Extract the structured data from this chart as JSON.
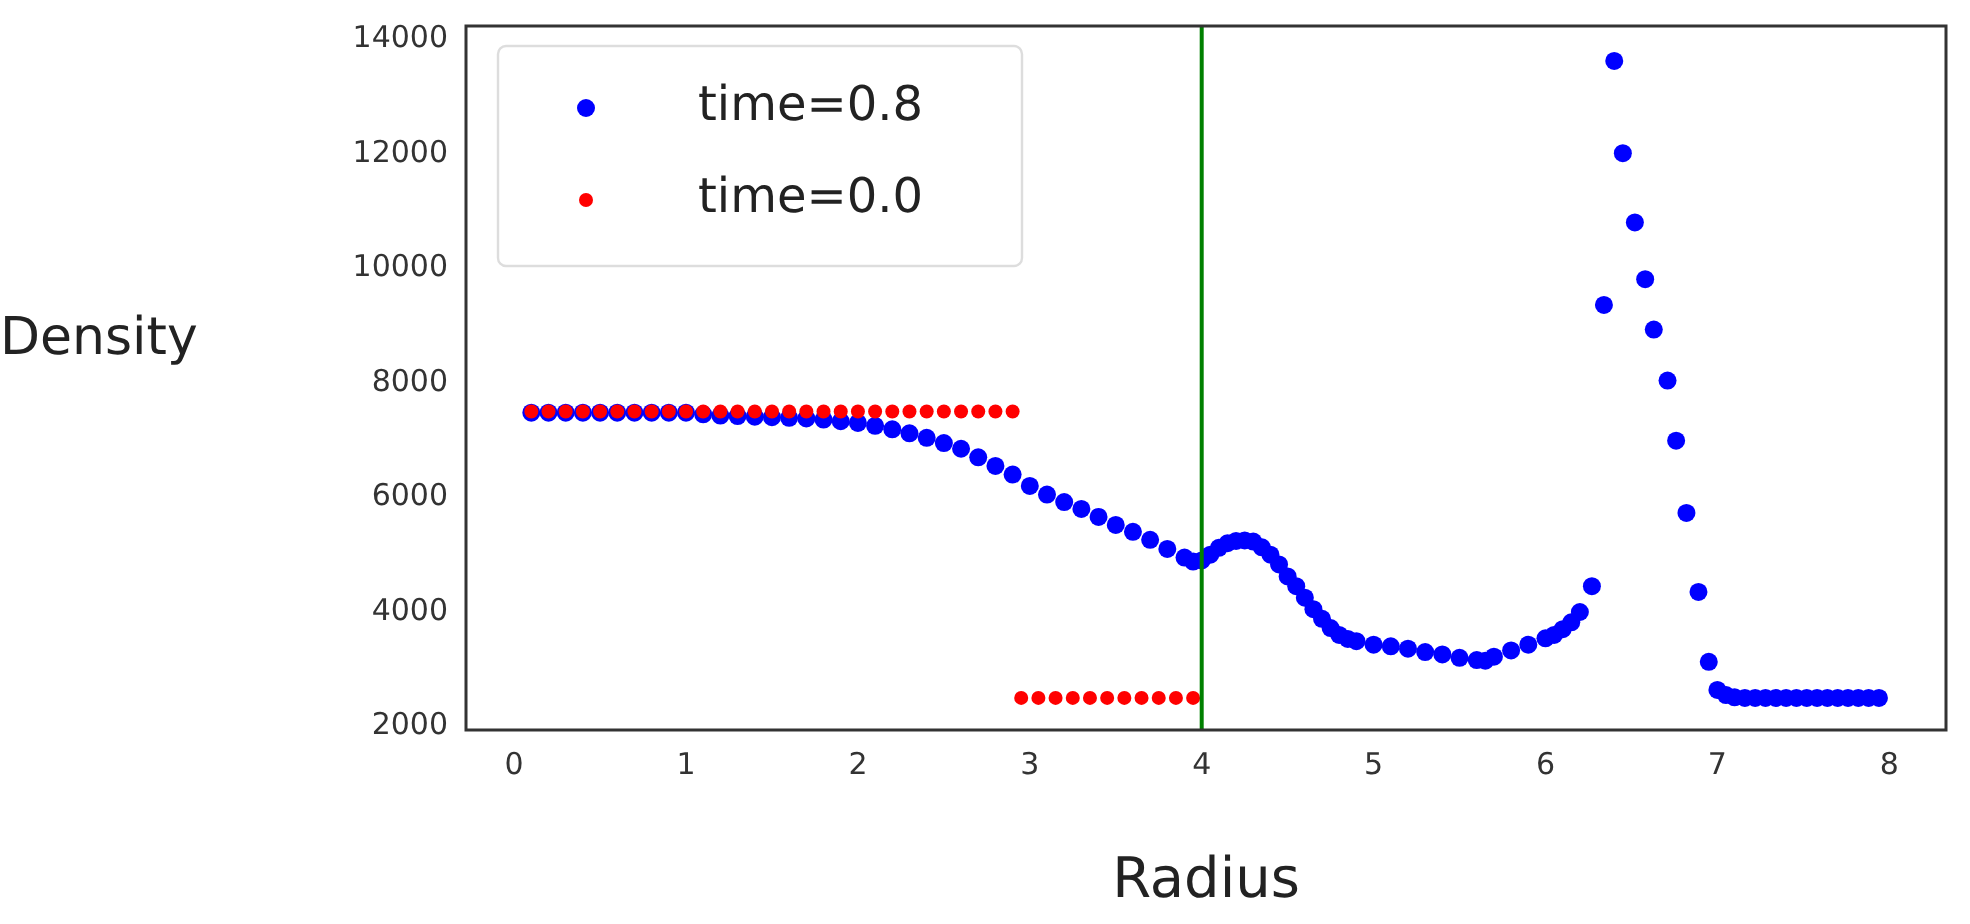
{
  "chart_data": {
    "type": "scatter",
    "xlabel": "Radius",
    "ylabel": "Density",
    "xlim": [
      -0.28,
      8.33
    ],
    "ylim": [
      1940,
      14230
    ],
    "xticks": [
      0,
      1,
      2,
      3,
      4,
      5,
      6,
      7,
      8
    ],
    "yticks": [
      2000,
      4000,
      6000,
      8000,
      10000,
      12000,
      14000
    ],
    "grid": false,
    "legend": "top left",
    "marker": "circle",
    "series": [
      {
        "name": "time=0.8",
        "color": "#0000ff",
        "x": [
          0.1,
          0.2,
          0.3,
          0.4,
          0.5,
          0.6,
          0.7,
          0.8,
          0.9,
          1.0,
          1.1,
          1.2,
          1.3,
          1.4,
          1.5,
          1.6,
          1.7,
          1.8,
          1.9,
          2.0,
          2.1,
          2.2,
          2.3,
          2.4,
          2.5,
          2.6,
          2.7,
          2.8,
          2.9,
          3.0,
          3.1,
          3.2,
          3.3,
          3.4,
          3.5,
          3.6,
          3.7,
          3.8,
          3.9,
          3.95,
          4.0,
          4.05,
          4.1,
          4.15,
          4.2,
          4.25,
          4.3,
          4.35,
          4.4,
          4.45,
          4.5,
          4.55,
          4.6,
          4.65,
          4.7,
          4.75,
          4.8,
          4.85,
          4.9,
          5.0,
          5.1,
          5.2,
          5.3,
          5.4,
          5.5,
          5.6,
          5.65,
          5.7,
          5.8,
          5.9,
          6.0,
          6.05,
          6.1,
          6.15,
          6.2,
          6.27,
          6.34,
          6.4,
          6.45,
          6.52,
          6.58,
          6.63,
          6.71,
          6.76,
          6.82,
          6.89,
          6.95,
          7.0,
          7.05,
          7.1,
          7.16,
          7.22,
          7.28,
          7.34,
          7.4,
          7.46,
          7.52,
          7.58,
          7.64,
          7.7,
          7.76,
          7.82,
          7.88,
          7.94
        ],
        "values": [
          7480,
          7480,
          7480,
          7480,
          7480,
          7480,
          7480,
          7480,
          7480,
          7480,
          7450,
          7430,
          7420,
          7410,
          7400,
          7390,
          7380,
          7360,
          7330,
          7300,
          7250,
          7190,
          7120,
          7040,
          6950,
          6850,
          6700,
          6550,
          6400,
          6200,
          6050,
          5920,
          5800,
          5660,
          5520,
          5400,
          5260,
          5100,
          4950,
          4880,
          4900,
          5000,
          5120,
          5200,
          5240,
          5250,
          5230,
          5130,
          5000,
          4830,
          4620,
          4450,
          4250,
          4050,
          3880,
          3720,
          3600,
          3530,
          3490,
          3430,
          3400,
          3360,
          3300,
          3260,
          3200,
          3160,
          3150,
          3220,
          3330,
          3430,
          3540,
          3600,
          3700,
          3820,
          4000,
          4450,
          9360,
          13620,
          12010,
          10800,
          9810,
          8930,
          8040,
          6990,
          5730,
          4350,
          3130,
          2640,
          2550,
          2510,
          2500,
          2500,
          2500,
          2500,
          2500,
          2500,
          2500,
          2500,
          2500,
          2500,
          2500,
          2500,
          2500,
          2500
        ]
      },
      {
        "name": "time=0.0",
        "color": "#ff0000",
        "x": [
          0.1,
          0.2,
          0.3,
          0.4,
          0.5,
          0.6,
          0.7,
          0.8,
          0.9,
          1.0,
          1.1,
          1.2,
          1.3,
          1.4,
          1.5,
          1.6,
          1.7,
          1.8,
          1.9,
          2.0,
          2.1,
          2.2,
          2.3,
          2.4,
          2.5,
          2.6,
          2.7,
          2.8,
          2.9,
          2.95,
          3.05,
          3.15,
          3.25,
          3.35,
          3.45,
          3.55,
          3.65,
          3.75,
          3.85,
          3.95
        ],
        "values": [
          7500,
          7500,
          7500,
          7500,
          7500,
          7500,
          7500,
          7500,
          7500,
          7500,
          7500,
          7500,
          7500,
          7500,
          7500,
          7500,
          7500,
          7500,
          7500,
          7500,
          7500,
          7500,
          7500,
          7500,
          7500,
          7500,
          7500,
          7500,
          7500,
          2500,
          2500,
          2500,
          2500,
          2500,
          2500,
          2500,
          2500,
          2500,
          2500,
          2500
        ]
      }
    ],
    "ref_lines": [
      {
        "axis": "x",
        "value": 4.0,
        "color": "#008000"
      }
    ]
  }
}
